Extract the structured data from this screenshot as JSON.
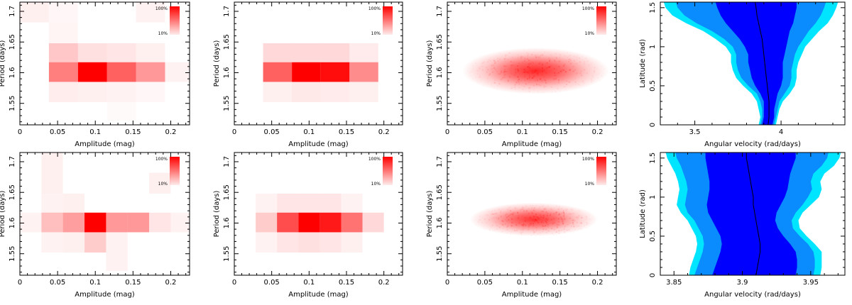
{
  "colors": {
    "heat": "#ff0000",
    "band_outer": "#00e5ff",
    "band_mid": "#0a8cff",
    "band_inner": "#0000ff",
    "median_line": "#000000"
  },
  "legend": {
    "max_label": "100%",
    "min_label": "10%"
  },
  "chart_data": [
    {
      "type": "heatmap",
      "id": "top-1",
      "xlabel": "Amplitude (mag)",
      "ylabel": "Period (days)",
      "xlim": [
        0,
        0.225
      ],
      "ylim": [
        1.515,
        1.715
      ],
      "xticks": [
        0,
        0.05,
        0.1,
        0.15,
        0.2
      ],
      "xtick_labels": [
        "0",
        "0.05",
        "0.1",
        "0.15",
        "0.2"
      ],
      "yticks": [
        1.55,
        1.6,
        1.65,
        1.7
      ],
      "ytick_labels": [
        "1.55",
        "1.6",
        "1.65",
        "1.7"
      ],
      "x_edges": [
        0,
        0.0385,
        0.077,
        0.1155,
        0.154,
        0.1925,
        0.225
      ],
      "y_edges": [
        1.522,
        1.552,
        1.585,
        1.617,
        1.648,
        1.682,
        1.715
      ],
      "values": [
        [
          0,
          0,
          0,
          0.02,
          0,
          0
        ],
        [
          0,
          0.07,
          0.06,
          0.05,
          0.03,
          0
        ],
        [
          0,
          0.5,
          1.0,
          0.62,
          0.4,
          0.05
        ],
        [
          0,
          0.22,
          0.12,
          0.1,
          0.06,
          0
        ],
        [
          0,
          0.04,
          0,
          0,
          0,
          0
        ],
        [
          0.06,
          0.03,
          0,
          0,
          0.05,
          0
        ]
      ]
    },
    {
      "type": "heatmap",
      "id": "top-2",
      "xlabel": "Amplitude (mag)",
      "ylabel": "Period (days)",
      "xlim": [
        0,
        0.225
      ],
      "ylim": [
        1.515,
        1.715
      ],
      "xticks": [
        0,
        0.05,
        0.1,
        0.15,
        0.2
      ],
      "xtick_labels": [
        "0",
        "0.05",
        "0.1",
        "0.15",
        "0.2"
      ],
      "yticks": [
        1.55,
        1.6,
        1.65,
        1.7
      ],
      "ytick_labels": [
        "1.55",
        "1.6",
        "1.65",
        "1.7"
      ],
      "x_edges": [
        0,
        0.0385,
        0.077,
        0.1155,
        0.154,
        0.1925,
        0.225
      ],
      "y_edges": [
        1.522,
        1.552,
        1.585,
        1.617,
        1.648,
        1.682,
        1.715
      ],
      "values": [
        [
          0,
          0,
          0,
          0,
          0,
          0
        ],
        [
          0,
          0.06,
          0.09,
          0.08,
          0.06,
          0
        ],
        [
          0,
          0.62,
          1.0,
          0.95,
          0.45,
          0
        ],
        [
          0,
          0.15,
          0.15,
          0.15,
          0.08,
          0
        ],
        [
          0,
          0,
          0,
          0,
          0,
          0
        ],
        [
          0,
          0,
          0,
          0,
          0,
          0
        ]
      ]
    },
    {
      "type": "heatmap",
      "id": "top-3",
      "style": "density",
      "xlabel": "Amplitude (mag)",
      "ylabel": "Period (days)",
      "xlim": [
        0,
        0.225
      ],
      "ylim": [
        1.515,
        1.715
      ],
      "xticks": [
        0,
        0.05,
        0.1,
        0.15,
        0.2
      ],
      "xtick_labels": [
        "0",
        "0.05",
        "0.1",
        "0.15",
        "0.2"
      ],
      "yticks": [
        1.55,
        1.6,
        1.65,
        1.7
      ],
      "ytick_labels": [
        "1.55",
        "1.6",
        "1.65",
        "1.7"
      ],
      "center": [
        0.1,
        1.603
      ],
      "spread": [
        0.055,
        0.018
      ],
      "extent_x": [
        0.02,
        0.215
      ],
      "peak": 0.85
    },
    {
      "type": "area",
      "id": "top-4",
      "xlabel": "Angular velocity (rad/days)",
      "ylabel": "Latitude (rad)",
      "xlim": [
        3.3,
        4.37
      ],
      "ylim": [
        0,
        1.571
      ],
      "xticks": [
        3.5,
        4
      ],
      "xtick_labels": [
        "3.5",
        "4"
      ],
      "yticks": [
        0,
        0.5,
        1,
        1.5
      ],
      "ytick_labels": [
        "0",
        "0.5",
        "1",
        "1.5"
      ],
      "latitudes": [
        0,
        0.1,
        0.2,
        0.3,
        0.4,
        0.5,
        0.6,
        0.7,
        0.8,
        0.9,
        1.0,
        1.1,
        1.2,
        1.3,
        1.4,
        1.5,
        1.571
      ],
      "outer_lo": [
        3.87,
        3.88,
        3.87,
        3.86,
        3.83,
        3.78,
        3.74,
        3.72,
        3.71,
        3.71,
        3.68,
        3.62,
        3.55,
        3.45,
        3.37,
        3.33,
        3.32
      ],
      "outer_hi": [
        3.97,
        3.98,
        3.99,
        4.01,
        4.05,
        4.08,
        4.09,
        4.09,
        4.1,
        4.12,
        4.14,
        4.18,
        4.22,
        4.27,
        4.3,
        4.32,
        4.33
      ],
      "mid_lo": [
        3.88,
        3.89,
        3.89,
        3.88,
        3.86,
        3.81,
        3.77,
        3.75,
        3.74,
        3.74,
        3.72,
        3.67,
        3.6,
        3.51,
        3.44,
        3.4,
        3.39
      ],
      "mid_hi": [
        3.96,
        3.97,
        3.98,
        3.99,
        4.02,
        4.05,
        4.06,
        4.06,
        4.07,
        4.08,
        4.1,
        4.13,
        4.16,
        4.2,
        4.23,
        4.25,
        4.26
      ],
      "inner_lo": [
        3.89,
        3.9,
        3.9,
        3.9,
        3.88,
        3.85,
        3.83,
        3.82,
        3.81,
        3.81,
        3.79,
        3.76,
        3.72,
        3.68,
        3.65,
        3.63,
        3.62
      ],
      "inner_hi": [
        3.95,
        3.96,
        3.96,
        3.97,
        3.98,
        4.0,
        4.01,
        4.01,
        4.01,
        4.02,
        4.03,
        4.04,
        4.05,
        4.07,
        4.08,
        4.09,
        4.09
      ],
      "median": [
        3.925,
        3.93,
        3.93,
        3.93,
        3.925,
        3.92,
        3.915,
        3.91,
        3.905,
        3.9,
        3.895,
        3.89,
        3.88,
        3.87,
        3.86,
        3.855,
        3.85
      ]
    },
    {
      "type": "heatmap",
      "id": "bottom-1",
      "xlabel": "Amplitude (mag)",
      "ylabel": "Period (days)",
      "xlim": [
        0,
        0.225
      ],
      "ylim": [
        1.515,
        1.715
      ],
      "xticks": [
        0,
        0.05,
        0.1,
        0.15,
        0.2
      ],
      "xtick_labels": [
        "0",
        "0.05",
        "0.1",
        "0.15",
        "0.2"
      ],
      "yticks": [
        1.55,
        1.6,
        1.65,
        1.7
      ],
      "ytick_labels": [
        "1.55",
        "1.6",
        "1.65",
        "1.7"
      ],
      "x_edges": [
        0,
        0.0286,
        0.0571,
        0.0857,
        0.1143,
        0.1429,
        0.1714,
        0.2,
        0.225
      ],
      "y_edges": [
        1.522,
        1.552,
        1.585,
        1.617,
        1.648,
        1.682,
        1.715
      ],
      "values": [
        [
          0,
          0,
          0,
          0,
          0.05,
          0,
          0,
          0
        ],
        [
          0,
          0.05,
          0.06,
          0.2,
          0.05,
          0,
          0,
          0
        ],
        [
          0.05,
          0.25,
          0.38,
          1.0,
          0.4,
          0.4,
          0.1,
          0.05
        ],
        [
          0,
          0.05,
          0.06,
          0,
          0,
          0,
          0,
          0
        ],
        [
          0,
          0.06,
          0,
          0,
          0,
          0,
          0.06,
          0
        ],
        [
          0,
          0.06,
          0,
          0,
          0,
          0,
          0,
          0
        ]
      ]
    },
    {
      "type": "heatmap",
      "id": "bottom-2",
      "xlabel": "Amplitude (mag)",
      "ylabel": "Period (days)",
      "xlim": [
        0,
        0.225
      ],
      "ylim": [
        1.515,
        1.715
      ],
      "xticks": [
        0,
        0.05,
        0.1,
        0.15,
        0.2
      ],
      "xtick_labels": [
        "0",
        "0.05",
        "0.1",
        "0.15",
        "0.2"
      ],
      "yticks": [
        1.55,
        1.6,
        1.65,
        1.7
      ],
      "ytick_labels": [
        "1.55",
        "1.6",
        "1.65",
        "1.7"
      ],
      "x_edges": [
        0,
        0.0286,
        0.0571,
        0.0857,
        0.1143,
        0.1429,
        0.1714,
        0.2,
        0.225
      ],
      "y_edges": [
        1.522,
        1.552,
        1.585,
        1.617,
        1.648,
        1.682,
        1.715
      ],
      "values": [
        [
          0,
          0,
          0,
          0,
          0,
          0,
          0,
          0
        ],
        [
          0,
          0.05,
          0.1,
          0.12,
          0.1,
          0.06,
          0,
          0
        ],
        [
          0,
          0.2,
          0.7,
          1.0,
          0.9,
          0.55,
          0.15,
          0
        ],
        [
          0,
          0.05,
          0.1,
          0.1,
          0.1,
          0.05,
          0,
          0
        ],
        [
          0,
          0,
          0,
          0,
          0,
          0,
          0,
          0
        ],
        [
          0,
          0,
          0,
          0,
          0,
          0,
          0,
          0
        ]
      ]
    },
    {
      "type": "heatmap",
      "id": "bottom-3",
      "style": "density",
      "xlabel": "Amplitude (mag)",
      "ylabel": "Period (days)",
      "xlim": [
        0,
        0.225
      ],
      "ylim": [
        1.515,
        1.715
      ],
      "xticks": [
        0,
        0.05,
        0.1,
        0.15,
        0.2
      ],
      "xtick_labels": [
        "0",
        "0.05",
        "0.1",
        "0.15",
        "0.2"
      ],
      "yticks": [
        1.55,
        1.6,
        1.65,
        1.7
      ],
      "ytick_labels": [
        "1.55",
        "1.6",
        "1.65",
        "1.7"
      ],
      "center": [
        0.11,
        1.606
      ],
      "spread": [
        0.045,
        0.013
      ],
      "extent_x": [
        0.03,
        0.2
      ],
      "peak": 0.8
    },
    {
      "type": "area",
      "id": "bottom-4",
      "xlabel": "Angular velocity (rad/days)",
      "ylabel": "Latitude (rad)",
      "xlim": [
        3.84,
        3.975
      ],
      "ylim": [
        0,
        1.571
      ],
      "xticks": [
        3.85,
        3.9,
        3.95
      ],
      "xtick_labels": [
        "3.85",
        "3.9",
        "3.95"
      ],
      "yticks": [
        0,
        0.5,
        1,
        1.5
      ],
      "ytick_labels": [
        "0",
        "0.5",
        "1",
        "1.5"
      ],
      "latitudes": [
        0,
        0.1,
        0.2,
        0.3,
        0.4,
        0.5,
        0.6,
        0.7,
        0.8,
        0.9,
        1.0,
        1.1,
        1.2,
        1.3,
        1.4,
        1.5,
        1.571
      ],
      "outer_lo": [
        3.861,
        3.862,
        3.864,
        3.866,
        3.867,
        3.866,
        3.863,
        3.86,
        3.855,
        3.852,
        3.853,
        3.854,
        3.853,
        3.851,
        3.848,
        3.845,
        3.844
      ],
      "outer_hi": [
        3.957,
        3.958,
        3.958,
        3.958,
        3.953,
        3.947,
        3.942,
        3.941,
        3.944,
        3.95,
        3.956,
        3.958,
        3.957,
        3.96,
        3.967,
        3.971,
        3.972
      ],
      "mid_lo": [
        3.865,
        3.867,
        3.869,
        3.871,
        3.872,
        3.871,
        3.868,
        3.865,
        3.86,
        3.858,
        3.859,
        3.86,
        3.859,
        3.857,
        3.855,
        3.852,
        3.851
      ],
      "mid_hi": [
        3.952,
        3.953,
        3.953,
        3.952,
        3.948,
        3.942,
        3.937,
        3.936,
        3.939,
        3.944,
        3.948,
        3.951,
        3.95,
        3.952,
        3.958,
        3.962,
        3.963
      ],
      "inner_lo": [
        3.878,
        3.88,
        3.882,
        3.884,
        3.885,
        3.884,
        3.881,
        3.878,
        3.875,
        3.874,
        3.875,
        3.876,
        3.876,
        3.875,
        3.874,
        3.873,
        3.873
      ],
      "inner_hi": [
        3.939,
        3.94,
        3.94,
        3.939,
        3.935,
        3.93,
        3.926,
        3.924,
        3.925,
        3.928,
        3.931,
        3.933,
        3.934,
        3.935,
        3.937,
        3.939,
        3.939
      ],
      "median": [
        3.91,
        3.911,
        3.912,
        3.913,
        3.913,
        3.912,
        3.911,
        3.91,
        3.909,
        3.908,
        3.908,
        3.907,
        3.906,
        3.905,
        3.904,
        3.903,
        3.903
      ]
    }
  ]
}
